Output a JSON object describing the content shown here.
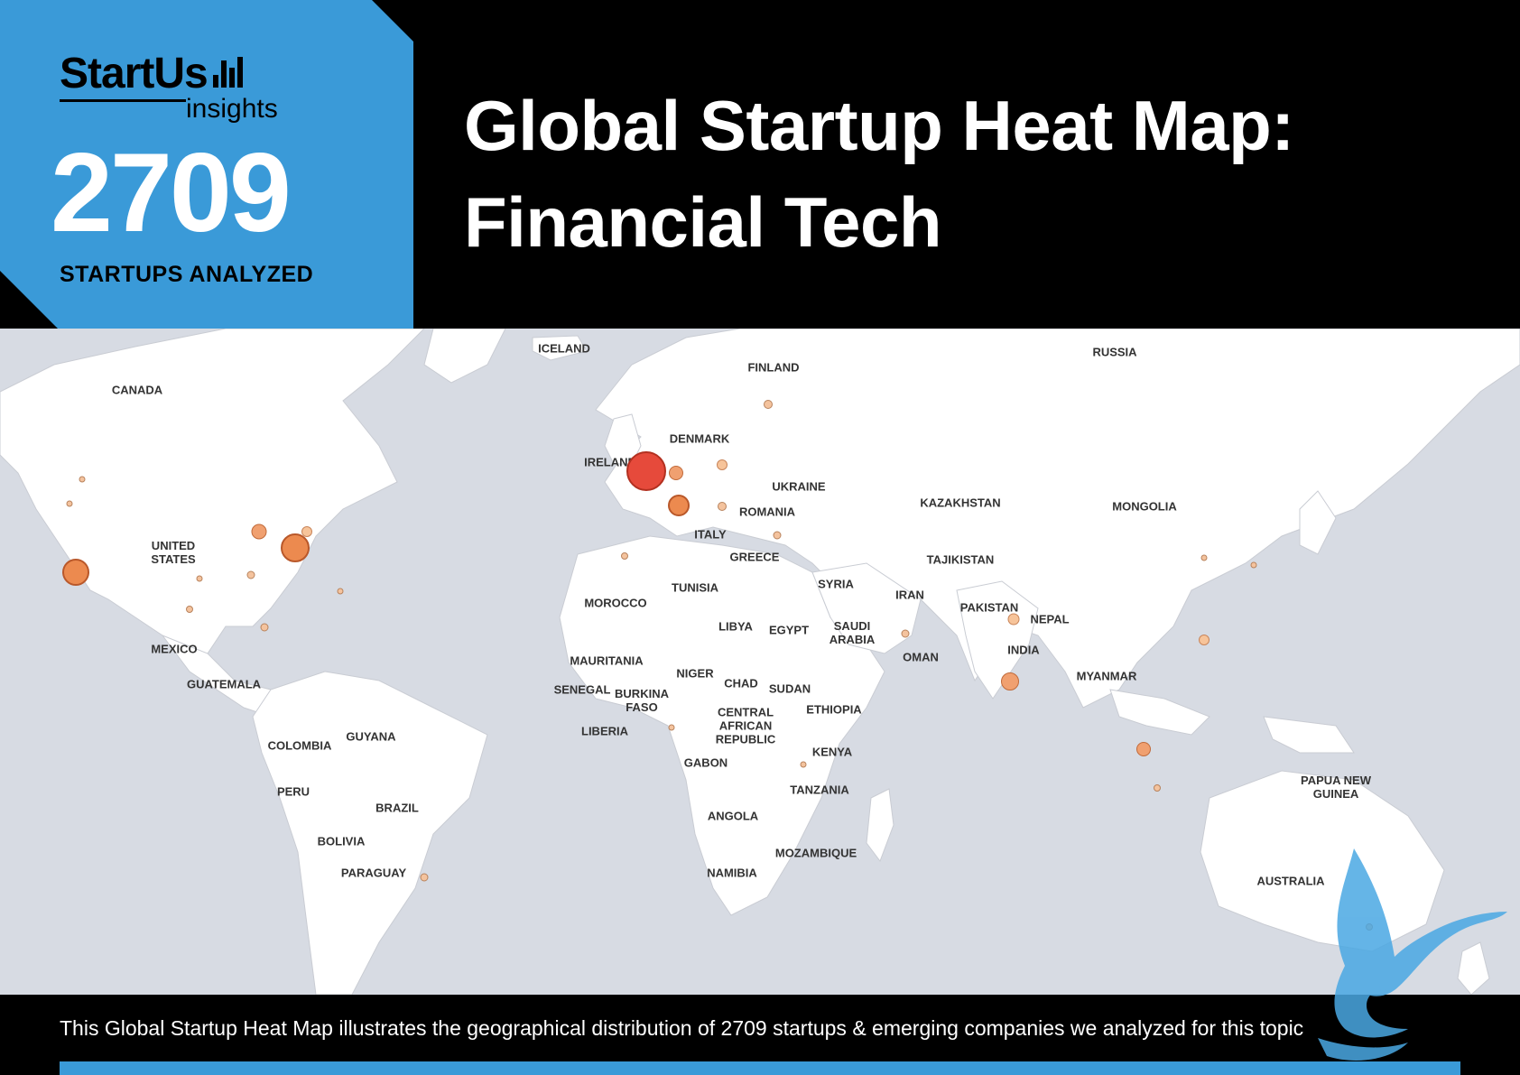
{
  "header": {
    "logo_main": "StartUs",
    "logo_sub": "insights",
    "count": "2709",
    "count_label": "STARTUPS ANALYZED",
    "title_line1": "Global Startup Heat Map:",
    "title_line2": "Financial Tech"
  },
  "map": {
    "labels": [
      {
        "id": "iceland",
        "text": "ICELAND"
      },
      {
        "id": "finland",
        "text": "FINLAND"
      },
      {
        "id": "russia",
        "text": "RUSSIA"
      },
      {
        "id": "canada",
        "text": "CANADA"
      },
      {
        "id": "denmark",
        "text": "DENMARK"
      },
      {
        "id": "ireland",
        "text": "IRELAND"
      },
      {
        "id": "ukraine",
        "text": "UKRAINE"
      },
      {
        "id": "kazakhstan",
        "text": "KAZAKHSTAN"
      },
      {
        "id": "mongolia",
        "text": "MONGOLIA"
      },
      {
        "id": "romania",
        "text": "ROMANIA"
      },
      {
        "id": "united-states",
        "text": "UNITED\nSTATES"
      },
      {
        "id": "italy",
        "text": "ITALY"
      },
      {
        "id": "greece",
        "text": "GREECE"
      },
      {
        "id": "tajikistan",
        "text": "TAJIKISTAN"
      },
      {
        "id": "tunisia",
        "text": "TUNISIA"
      },
      {
        "id": "syria",
        "text": "SYRIA"
      },
      {
        "id": "iran",
        "text": "IRAN"
      },
      {
        "id": "morocco",
        "text": "MOROCCO"
      },
      {
        "id": "pakistan",
        "text": "PAKISTAN"
      },
      {
        "id": "nepal",
        "text": "NEPAL"
      },
      {
        "id": "libya",
        "text": "LIBYA"
      },
      {
        "id": "egypt",
        "text": "EGYPT"
      },
      {
        "id": "saudi-arabia",
        "text": "SAUDI\nARABIA"
      },
      {
        "id": "india",
        "text": "INDIA"
      },
      {
        "id": "mexico",
        "text": "MEXICO"
      },
      {
        "id": "oman",
        "text": "OMAN"
      },
      {
        "id": "mauritania",
        "text": "MAURITANIA"
      },
      {
        "id": "niger",
        "text": "NIGER"
      },
      {
        "id": "myanmar",
        "text": "MYANMAR"
      },
      {
        "id": "guatemala",
        "text": "GUATEMALA"
      },
      {
        "id": "chad",
        "text": "CHAD"
      },
      {
        "id": "senegal",
        "text": "SENEGAL"
      },
      {
        "id": "sudan",
        "text": "SUDAN"
      },
      {
        "id": "burkina-faso",
        "text": "BURKINA\nFASO"
      },
      {
        "id": "ethiopia",
        "text": "ETHIOPIA"
      },
      {
        "id": "central-african-republic",
        "text": "CENTRAL\nAFRICAN\nREPUBLIC"
      },
      {
        "id": "liberia",
        "text": "LIBERIA"
      },
      {
        "id": "guyana",
        "text": "GUYANA"
      },
      {
        "id": "colombia",
        "text": "COLOMBIA"
      },
      {
        "id": "kenya",
        "text": "KENYA"
      },
      {
        "id": "gabon",
        "text": "GABON"
      },
      {
        "id": "papua-new-guinea",
        "text": "PAPUA NEW\nGUINEA"
      },
      {
        "id": "peru",
        "text": "PERU"
      },
      {
        "id": "tanzania",
        "text": "TANZANIA"
      },
      {
        "id": "brazil",
        "text": "BRAZIL"
      },
      {
        "id": "angola",
        "text": "ANGOLA"
      },
      {
        "id": "bolivia",
        "text": "BOLIVIA"
      },
      {
        "id": "mozambique",
        "text": "MOZAMBIQUE"
      },
      {
        "id": "paraguay",
        "text": "PARAGUAY"
      },
      {
        "id": "namibia",
        "text": "NAMIBIA"
      },
      {
        "id": "australia",
        "text": "AUSTRALIA"
      }
    ]
  },
  "footer": {
    "caption": "This Global Startup Heat Map illustrates the geographical distribution of 2709 startups & emerging companies we analyzed for this topic"
  },
  "colors": {
    "accent": "#3a9ad8",
    "bubble_large": "#e64a3b",
    "bubble_medium": "#ec8a4f",
    "ocean": "#d7dbe3",
    "land": "#ffffff"
  }
}
